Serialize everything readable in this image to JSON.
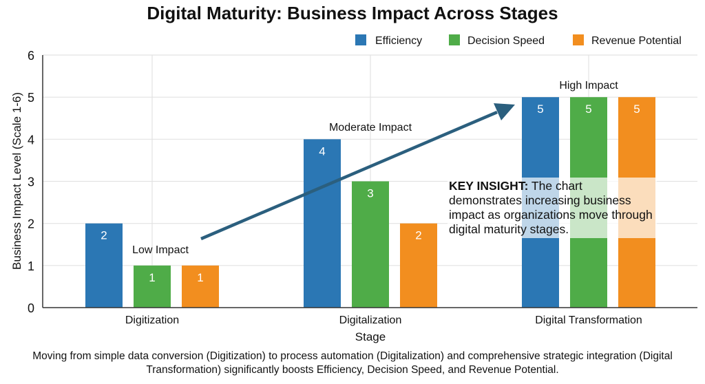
{
  "chart_data": {
    "type": "bar",
    "title": "Digital Maturity: Business Impact Across Stages",
    "xlabel": "Stage",
    "ylabel": "Business Impact Level (Scale 1-6)",
    "ylim": [
      0,
      6
    ],
    "yticks": [
      "0",
      "1",
      "2",
      "3",
      "4",
      "5",
      "6"
    ],
    "grid": true,
    "legend_position": "top-right",
    "categories": [
      "Digitization",
      "Digitalization",
      "Digital Transformation"
    ],
    "series": [
      {
        "name": "Efficiency",
        "values": [
          2,
          4,
          5
        ],
        "color": "#2b77b4"
      },
      {
        "name": "Decision Speed",
        "values": [
          1,
          3,
          5
        ],
        "color": "#4fac48"
      },
      {
        "name": "Revenue Potential",
        "values": [
          1,
          2,
          5
        ],
        "color": "#f28e1f"
      }
    ],
    "stage_annotations": [
      "Low Impact",
      "Moderate Impact",
      "High Impact"
    ],
    "arrow_color": "#2b5f7e",
    "insight": {
      "label": "KEY INSIGHT:",
      "text": " The chart demonstrates increasing business impact as organizations move through digital maturity stages."
    }
  },
  "footer": "Moving from simple data conversion (Digitization) to process automation (Digitalization) and comprehensive strategic integration (Digital Transformation) significantly boosts Efficiency, Decision Speed, and Revenue Potential."
}
